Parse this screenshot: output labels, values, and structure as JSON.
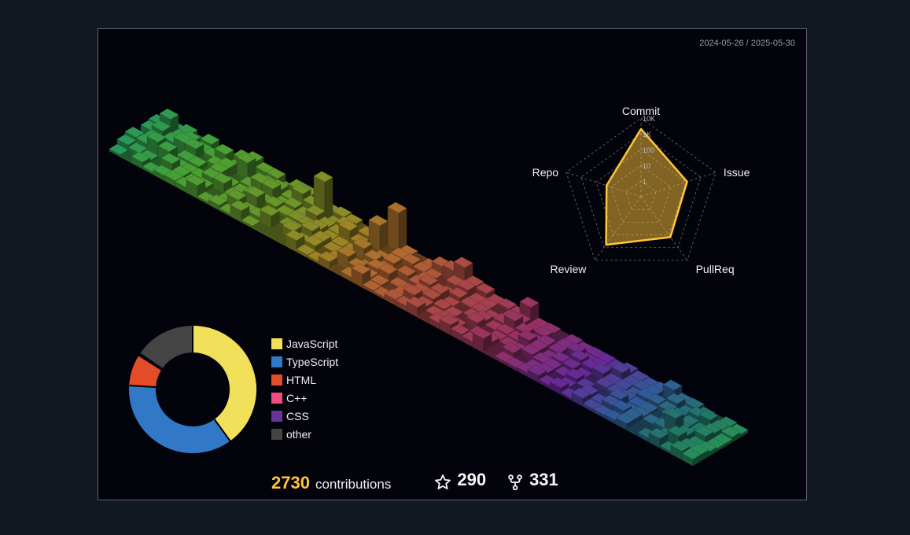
{
  "header": {
    "date_range": "2024-05-26 / 2025-05-30"
  },
  "chart_data": [
    {
      "type": "bar",
      "variant": "isometric-3d-calendar",
      "title": "",
      "note": "daily contribution counts rendered as an isometric block grid, 7 days per week column",
      "weeks": 53,
      "days_per_week": 7
    },
    {
      "type": "radar",
      "scale": "log",
      "tick_labels": [
        "1",
        "10",
        "100",
        "1K",
        "10K"
      ],
      "axes": [
        "Commit",
        "Issue",
        "PullReq",
        "Review",
        "Repo"
      ],
      "values": [
        2000,
        120,
        150,
        600,
        20
      ],
      "fill_color": "#ffc53b",
      "grid": true
    },
    {
      "type": "pie",
      "variant": "donut",
      "categories": [
        "JavaScript",
        "TypeScript",
        "HTML",
        "C++",
        "CSS",
        "other"
      ],
      "values": [
        40,
        36,
        8,
        0.3,
        0.2,
        15.5
      ],
      "colors": [
        "#f1e05a",
        "#3178c6",
        "#e34c26",
        "#f34b7d",
        "#663399",
        "#444444"
      ]
    }
  ],
  "footer": {
    "contributions": "2730",
    "contributions_label": "contributions",
    "stars": "290",
    "forks": "331",
    "star_icon": "star-outline-icon",
    "fork_icon": "repo-forked-icon"
  }
}
